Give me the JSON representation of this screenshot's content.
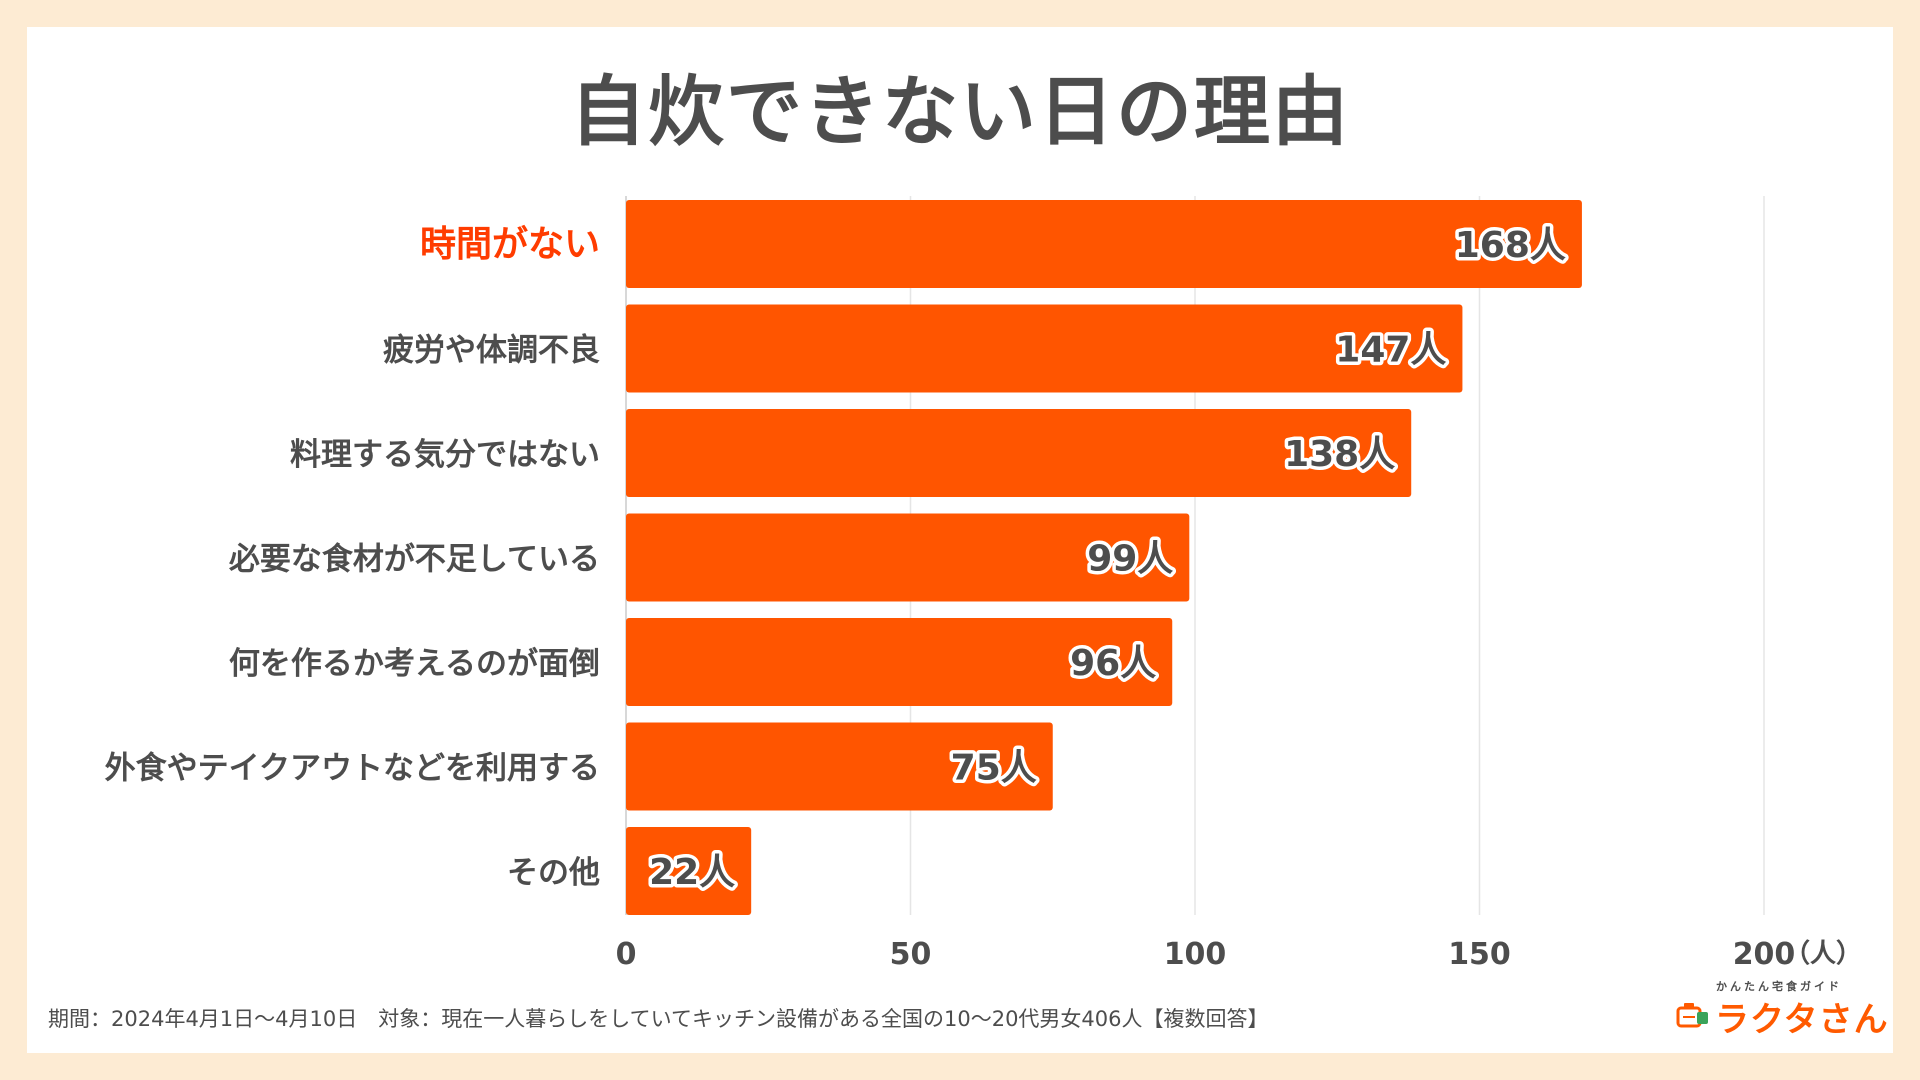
{
  "chart_data": {
    "type": "bar",
    "orientation": "horizontal",
    "title": "自炊できない日の理由",
    "categories": [
      "時間がない",
      "疲労や体調不良",
      "料理する気分ではない",
      "必要な食材が不足している",
      "何を作るか考えるのが面倒",
      "外食やテイクアウトなどを利用する",
      "その他"
    ],
    "values": [
      168,
      147,
      138,
      99,
      96,
      75,
      22
    ],
    "value_labels": [
      "168人",
      "147人",
      "138人",
      "99人",
      "96人",
      "75人",
      "22人"
    ],
    "highlight_index": 0,
    "xlim": [
      0,
      200
    ],
    "xticks": [
      0,
      50,
      100,
      150,
      200
    ],
    "xtick_labels": [
      "0",
      "50",
      "100",
      "150",
      "200"
    ],
    "unit_label": "（人）",
    "grid": true,
    "legend": "none"
  },
  "colors": {
    "bar": "#ff5500",
    "highlight_label": "#ff3c00",
    "text": "#4d4d4d",
    "grid": "#e5e5e5",
    "background": "#fdebd3"
  },
  "footer": {
    "note": "期間：2024年4月1日〜4月10日　対象：現在一人暮らしをしていてキッチン設備がある全国の10〜20代男女406人【複数回答】"
  },
  "logo": {
    "subtitle": "かんたん宅食ガイド",
    "name": "ラクタさん",
    "icon": "lunchbox-logo-icon"
  }
}
